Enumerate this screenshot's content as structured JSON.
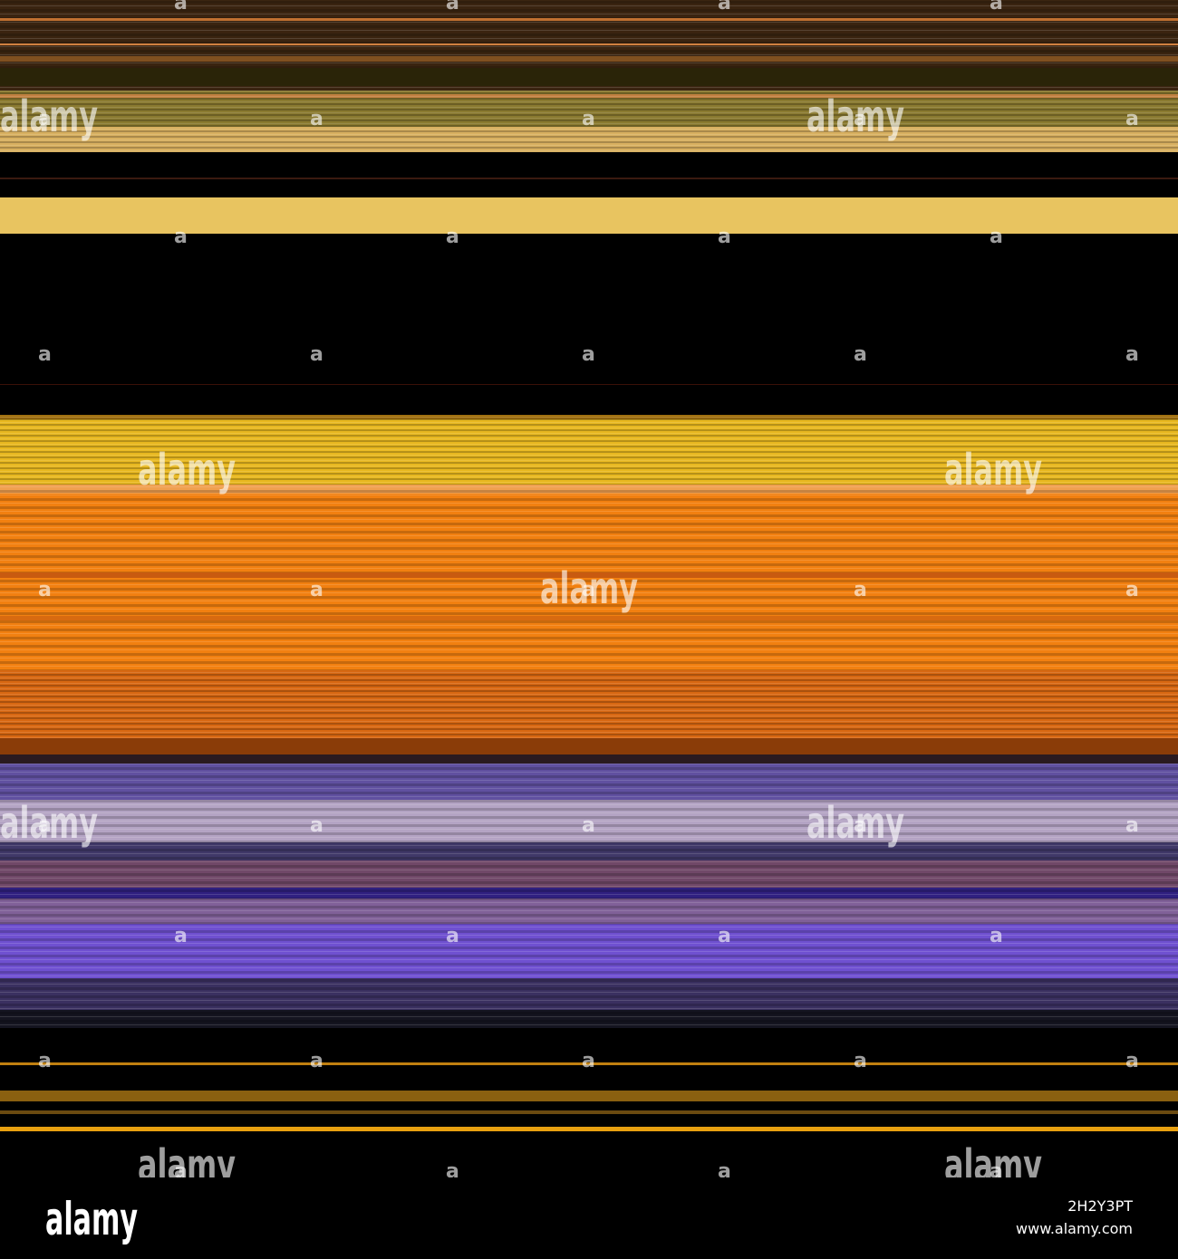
{
  "watermark": {
    "logo": "alamy",
    "mark": "a"
  },
  "footer": {
    "logo": "alamy",
    "image_id": "2H2Y3PT",
    "url": "www.alamy.com"
  }
}
